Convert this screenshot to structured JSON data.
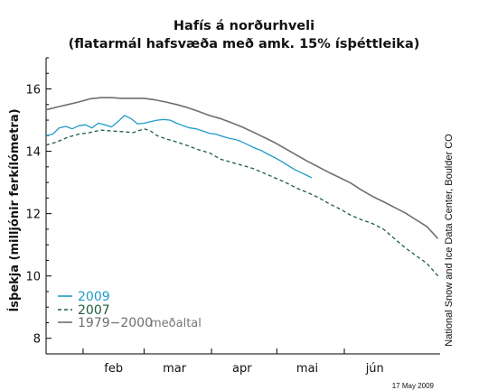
{
  "chart_data": {
    "type": "line",
    "title": "Hafís á norðurhveli",
    "subtitle": "(flatarmál hafsvæða með amk. 15% ísþéttleika)",
    "ylabel": "Ísþekja (milljónir ferkílómetra)",
    "xlabel": "",
    "ylim": [
      7.5,
      17
    ],
    "xlim": [
      15,
      196
    ],
    "yticks": [
      8,
      10,
      12,
      14,
      16
    ],
    "month_ticks": [
      32,
      60,
      91,
      121,
      152
    ],
    "month_labels": [
      "feb",
      "mar",
      "apr",
      "mai",
      "jún"
    ],
    "month_label_x": [
      46,
      74,
      105,
      135,
      166
    ],
    "grid": false,
    "legend_position": "bottom-left",
    "legend_note": "meðaltal",
    "credit": "National Snow and Ice Data Center, Boulder CO",
    "date_stamp": "17 May 2009",
    "series": [
      {
        "name": "2009",
        "color": "#1f9bc9",
        "style": "solid",
        "x": [
          15,
          18,
          21,
          24,
          27,
          30,
          33,
          36,
          39,
          42,
          45,
          48,
          51,
          54,
          57,
          60,
          63,
          66,
          69,
          72,
          75,
          78,
          81,
          84,
          87,
          90,
          93,
          96,
          99,
          102,
          105,
          108,
          111,
          114,
          117,
          120,
          123,
          126,
          129,
          132,
          135,
          137
        ],
        "y": [
          14.5,
          14.55,
          14.75,
          14.8,
          14.72,
          14.82,
          14.85,
          14.75,
          14.9,
          14.85,
          14.78,
          14.95,
          15.15,
          15.05,
          14.88,
          14.9,
          14.95,
          15.0,
          15.02,
          15.0,
          14.9,
          14.82,
          14.75,
          14.72,
          14.65,
          14.58,
          14.55,
          14.48,
          14.42,
          14.38,
          14.3,
          14.2,
          14.1,
          14.02,
          13.9,
          13.8,
          13.68,
          13.55,
          13.42,
          13.32,
          13.22,
          13.15
        ]
      },
      {
        "name": "2007",
        "color": "#1e5e3a",
        "style": "dashed",
        "x": [
          15,
          20,
          25,
          30,
          35,
          40,
          45,
          50,
          55,
          60,
          63,
          66,
          70,
          75,
          80,
          85,
          90,
          95,
          100,
          105,
          110,
          115,
          120,
          125,
          130,
          135,
          140,
          145,
          150,
          155,
          160,
          165,
          170,
          175,
          180,
          185,
          190,
          195
        ],
        "y": [
          14.2,
          14.3,
          14.45,
          14.55,
          14.6,
          14.68,
          14.65,
          14.63,
          14.6,
          14.72,
          14.65,
          14.5,
          14.4,
          14.3,
          14.18,
          14.05,
          13.95,
          13.75,
          13.65,
          13.55,
          13.45,
          13.3,
          13.15,
          13.0,
          12.82,
          12.68,
          12.52,
          12.32,
          12.15,
          11.95,
          11.8,
          11.68,
          11.5,
          11.2,
          10.9,
          10.65,
          10.4,
          10.0
        ]
      },
      {
        "name": "1979−2000",
        "color": "#6e6e6e",
        "style": "solid",
        "x": [
          15,
          20,
          25,
          30,
          35,
          40,
          45,
          50,
          55,
          60,
          65,
          70,
          75,
          80,
          85,
          90,
          95,
          100,
          105,
          110,
          115,
          120,
          125,
          130,
          135,
          140,
          145,
          150,
          155,
          160,
          165,
          170,
          175,
          180,
          185,
          190,
          195
        ],
        "y": [
          15.33,
          15.42,
          15.5,
          15.58,
          15.68,
          15.72,
          15.72,
          15.7,
          15.7,
          15.7,
          15.65,
          15.58,
          15.5,
          15.4,
          15.28,
          15.15,
          15.05,
          14.92,
          14.78,
          14.62,
          14.45,
          14.28,
          14.08,
          13.88,
          13.68,
          13.5,
          13.32,
          13.15,
          12.98,
          12.75,
          12.55,
          12.38,
          12.2,
          12.02,
          11.8,
          11.58,
          11.2
        ]
      }
    ]
  }
}
